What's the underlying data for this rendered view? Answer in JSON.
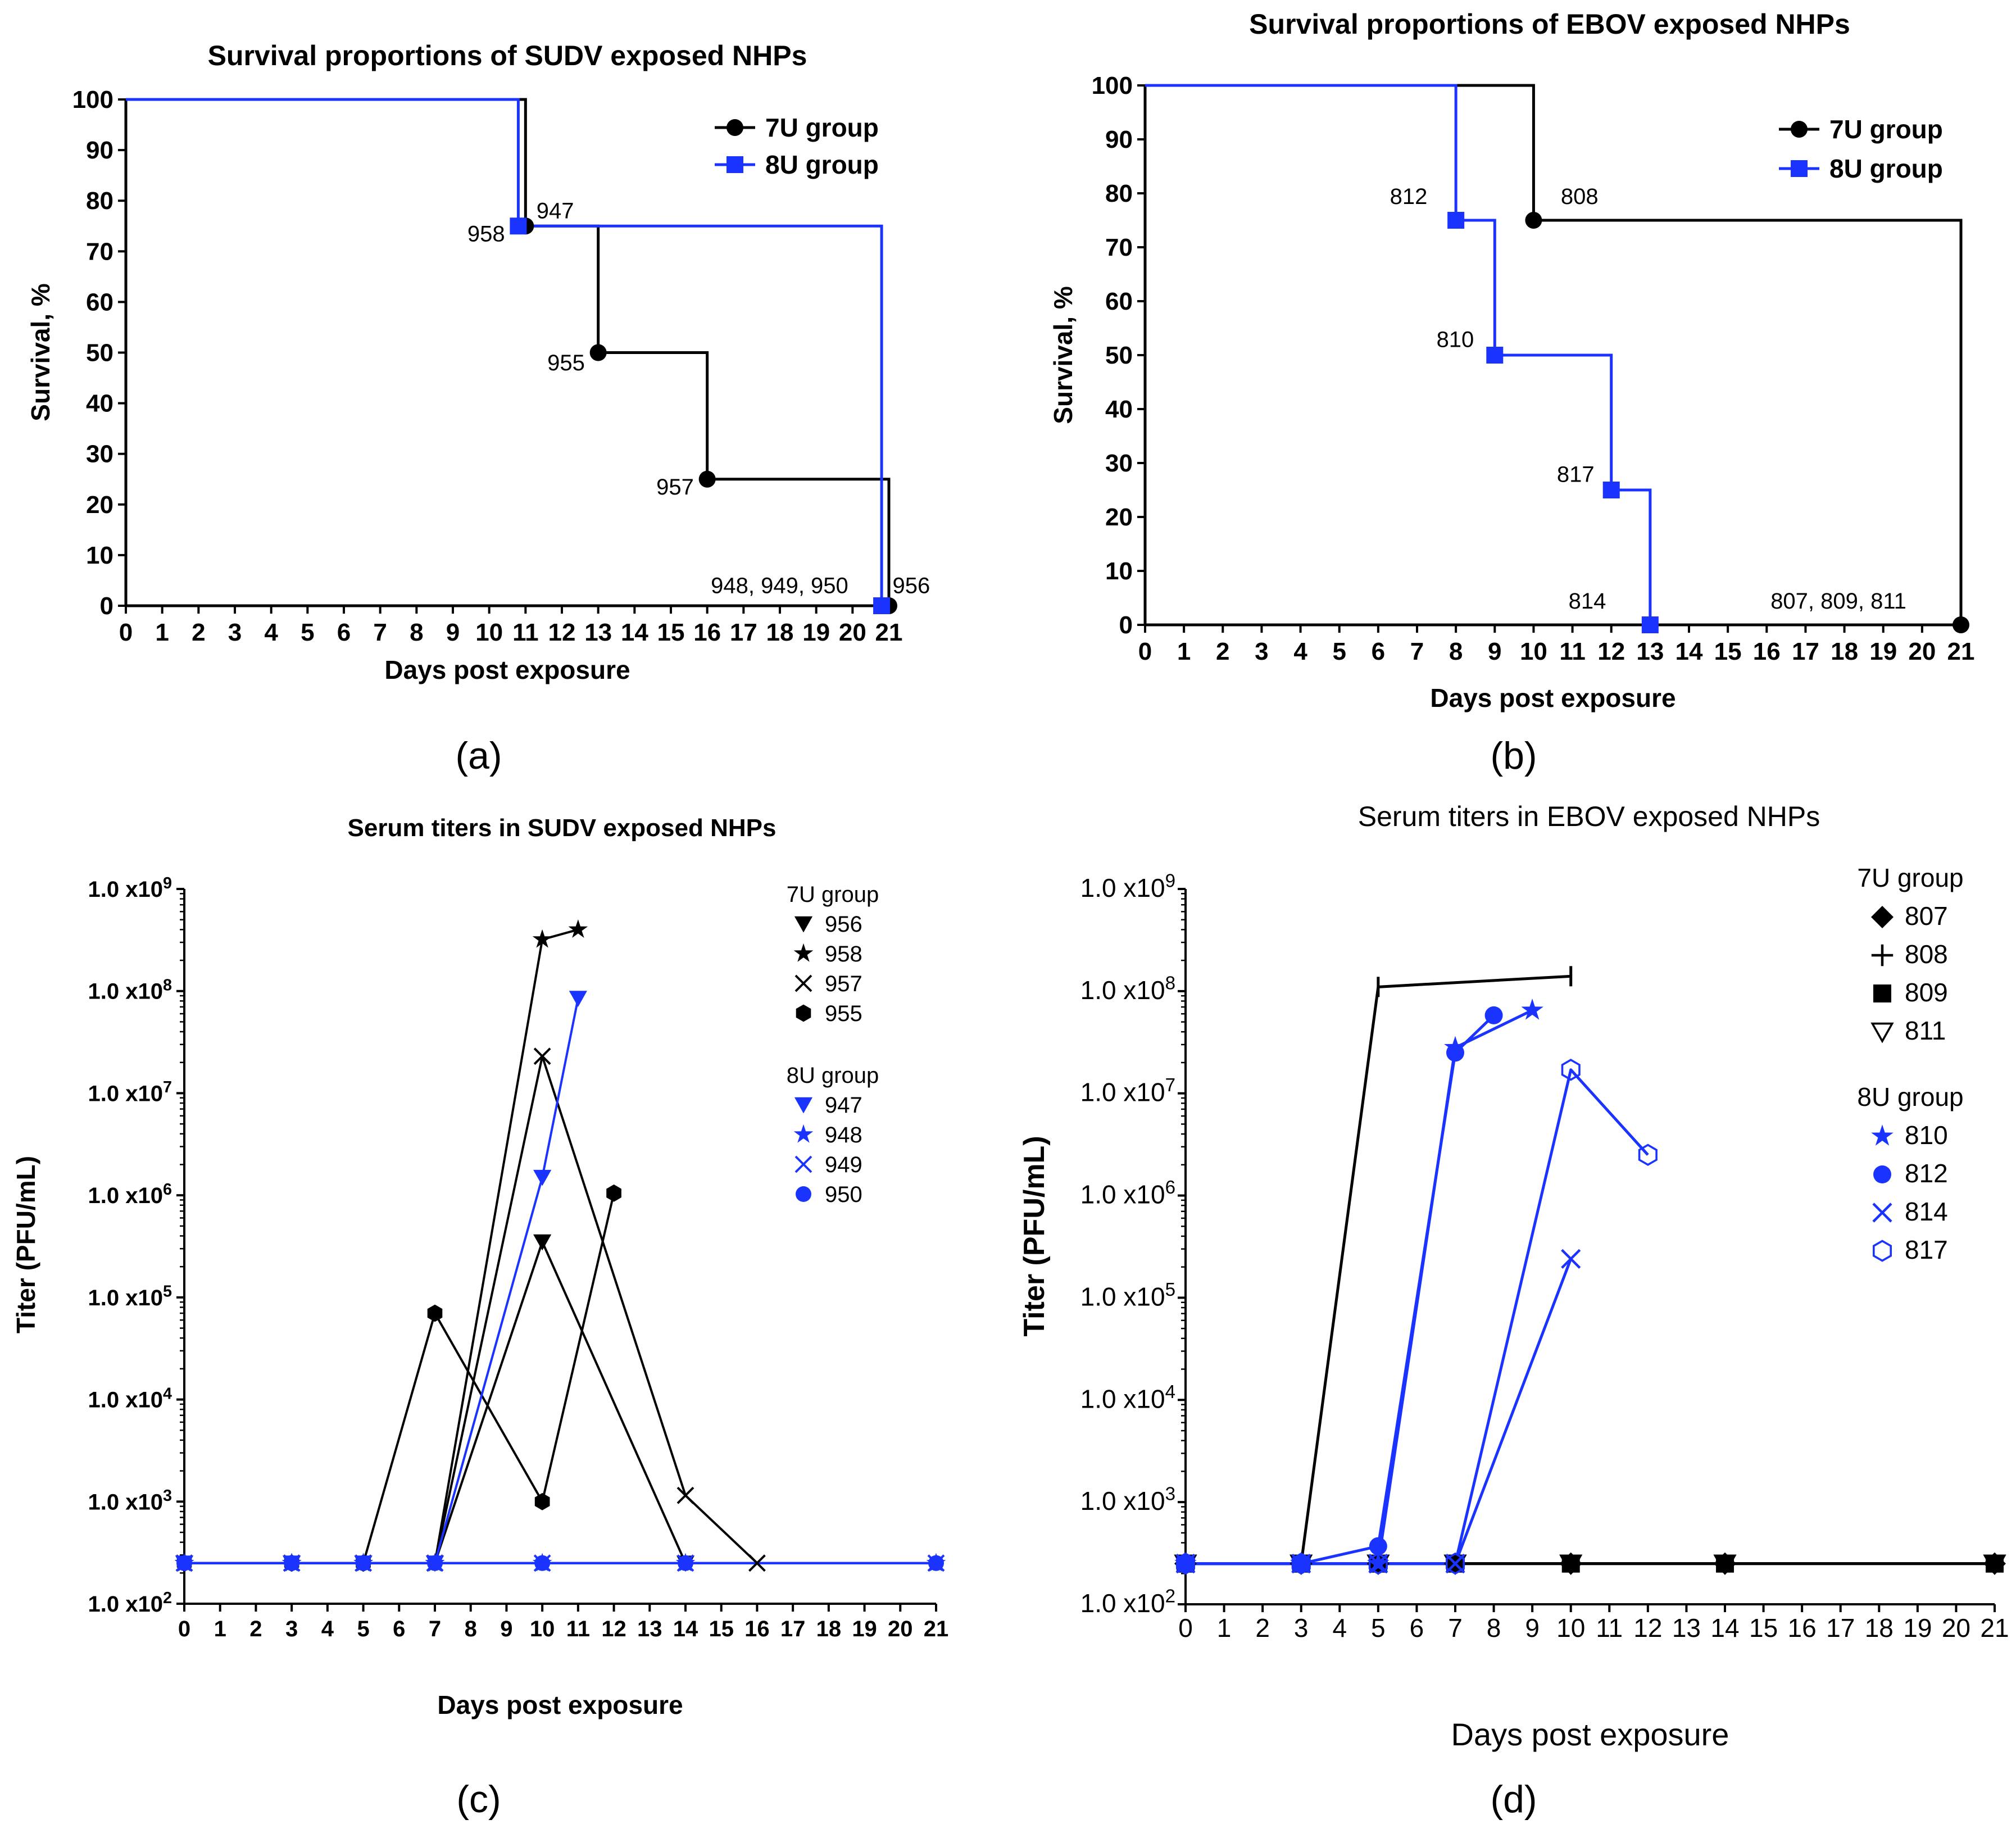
{
  "colors": {
    "group_7u": "#000000",
    "group_8u": "#1a33ff"
  },
  "panels": [
    {
      "id": "a",
      "caption": "(a)"
    },
    {
      "id": "b",
      "caption": "(b)"
    },
    {
      "id": "c",
      "caption": "(c)"
    },
    {
      "id": "d",
      "caption": "(d)"
    }
  ],
  "chart_data": [
    {
      "id": "a",
      "type": "line",
      "step": true,
      "title": "Survival proportions of SUDV exposed NHPs",
      "xlabel": "Days post exposure",
      "ylabel": "Survival, %",
      "xlim": [
        0,
        21
      ],
      "ylim": [
        0,
        100
      ],
      "xticks": [
        0,
        1,
        2,
        3,
        4,
        5,
        6,
        7,
        8,
        9,
        10,
        11,
        12,
        13,
        14,
        15,
        16,
        17,
        18,
        19,
        20,
        21
      ],
      "yticks": [
        0,
        10,
        20,
        30,
        40,
        50,
        60,
        70,
        80,
        90,
        100
      ],
      "legend_position": "top-right",
      "series": [
        {
          "name": "7U group",
          "color": "#000000",
          "marker": "circle",
          "x": [
            0,
            11,
            13,
            16,
            21
          ],
          "y": [
            100,
            75,
            50,
            25,
            0
          ]
        },
        {
          "name": "8U group",
          "color": "#1a33ff",
          "marker": "square",
          "x": [
            0,
            10.8,
            20.8
          ],
          "y": [
            100,
            75,
            0
          ]
        }
      ],
      "annotations": [
        {
          "text": "947",
          "x": 11.3,
          "y": 76.5
        },
        {
          "text": "958",
          "x": 9.4,
          "y": 72
        },
        {
          "text": "955",
          "x": 11.6,
          "y": 46.5
        },
        {
          "text": "957",
          "x": 14.6,
          "y": 22
        },
        {
          "text": "948, 949, 950",
          "x": 16.1,
          "y": 2.5
        },
        {
          "text": "956",
          "x": 21.1,
          "y": 2.5
        }
      ]
    },
    {
      "id": "b",
      "type": "line",
      "step": true,
      "title": "Survival proportions of EBOV exposed NHPs",
      "xlabel": "Days post exposure",
      "ylabel": "Survival, %",
      "xlim": [
        0,
        21
      ],
      "ylim": [
        0,
        100
      ],
      "xticks": [
        0,
        1,
        2,
        3,
        4,
        5,
        6,
        7,
        8,
        9,
        10,
        11,
        12,
        13,
        14,
        15,
        16,
        17,
        18,
        19,
        20,
        21
      ],
      "yticks": [
        0,
        10,
        20,
        30,
        40,
        50,
        60,
        70,
        80,
        90,
        100
      ],
      "legend_position": "top-right",
      "series": [
        {
          "name": "7U group",
          "color": "#000000",
          "marker": "circle",
          "x": [
            0,
            10,
            21
          ],
          "y": [
            100,
            75,
            0
          ]
        },
        {
          "name": "8U group",
          "color": "#1a33ff",
          "marker": "square",
          "x": [
            0,
            8,
            9,
            12,
            13
          ],
          "y": [
            100,
            75,
            50,
            25,
            0
          ]
        }
      ],
      "annotations": [
        {
          "text": "812",
          "x": 6.3,
          "y": 78
        },
        {
          "text": "808",
          "x": 10.7,
          "y": 78
        },
        {
          "text": "810",
          "x": 7.5,
          "y": 51.5
        },
        {
          "text": "817",
          "x": 10.6,
          "y": 26.5
        },
        {
          "text": "814",
          "x": 10.9,
          "y": 3
        },
        {
          "text": "807, 809, 811",
          "x": 16.1,
          "y": 3
        }
      ]
    },
    {
      "id": "c",
      "type": "line",
      "log_y": true,
      "title": "Serum titers in SUDV exposed NHPs",
      "xlabel": "Days post exposure",
      "ylabel": "Titer (PFU/mL)",
      "xlim": [
        0,
        21
      ],
      "ylim": [
        100,
        1000000000
      ],
      "xticks": [
        0,
        1,
        2,
        3,
        4,
        5,
        6,
        7,
        8,
        9,
        10,
        11,
        12,
        13,
        14,
        15,
        16,
        17,
        18,
        19,
        20,
        21
      ],
      "ytick_mantissa": "1.0 x10",
      "ytick_exponents": [
        "2",
        "3",
        "4",
        "5",
        "6",
        "7",
        "8",
        "9"
      ],
      "legend_position": "top-right",
      "legend_groups": [
        {
          "title": "7U group",
          "entries": [
            "956",
            "958",
            "957",
            "955"
          ]
        },
        {
          "title": "8U group",
          "entries": [
            "947",
            "948",
            "949",
            "950"
          ]
        }
      ],
      "series": [
        {
          "name": "956",
          "group": "7U group",
          "color": "#000000",
          "marker": "tri-down",
          "x": [
            0,
            3,
            5,
            7,
            10,
            14
          ],
          "y": [
            250,
            250,
            250,
            250,
            350000,
            250
          ]
        },
        {
          "name": "958",
          "group": "7U group",
          "color": "#000000",
          "marker": "star",
          "x": [
            0,
            3,
            5,
            7,
            10,
            11
          ],
          "y": [
            250,
            250,
            250,
            250,
            320000000,
            400000000
          ]
        },
        {
          "name": "957",
          "group": "7U group",
          "color": "#000000",
          "marker": "x",
          "x": [
            0,
            3,
            5,
            7,
            10,
            14,
            16
          ],
          "y": [
            250,
            250,
            250,
            250,
            23000000,
            1150,
            250
          ]
        },
        {
          "name": "955",
          "group": "7U group",
          "color": "#000000",
          "marker": "hexagon",
          "x": [
            0,
            3,
            5,
            7,
            10,
            12
          ],
          "y": [
            250,
            250,
            250,
            70000,
            1000,
            1050000
          ]
        },
        {
          "name": "947",
          "group": "8U group",
          "color": "#1a33ff",
          "marker": "tri-down",
          "x": [
            0,
            3,
            5,
            7,
            10,
            11
          ],
          "y": [
            250,
            250,
            250,
            250,
            1500000,
            85000000
          ]
        },
        {
          "name": "948",
          "group": "8U group",
          "color": "#1a33ff",
          "marker": "star",
          "x": [
            0,
            3,
            5,
            7,
            10,
            14,
            21
          ],
          "y": [
            250,
            250,
            250,
            250,
            250,
            250,
            250
          ]
        },
        {
          "name": "949",
          "group": "8U group",
          "color": "#1a33ff",
          "marker": "x",
          "x": [
            0,
            3,
            5,
            7,
            10,
            14,
            21
          ],
          "y": [
            250,
            250,
            250,
            250,
            250,
            250,
            250
          ]
        },
        {
          "name": "950",
          "group": "8U group",
          "color": "#1a33ff",
          "marker": "circle",
          "x": [
            0,
            3,
            5,
            7,
            10,
            14,
            21
          ],
          "y": [
            250,
            250,
            250,
            250,
            250,
            250,
            250
          ]
        }
      ]
    },
    {
      "id": "d",
      "type": "line",
      "log_y": true,
      "title": "Serum titers in EBOV exposed NHPs",
      "xlabel": "Days post exposure",
      "ylabel": "Titer (PFU/mL)",
      "xlim": [
        0,
        21
      ],
      "ylim": [
        100,
        1000000000
      ],
      "xticks": [
        0,
        1,
        2,
        3,
        4,
        5,
        6,
        7,
        8,
        9,
        10,
        11,
        12,
        13,
        14,
        15,
        16,
        17,
        18,
        19,
        20,
        21
      ],
      "ytick_mantissa": "1.0 x10",
      "ytick_exponents": [
        "2",
        "3",
        "4",
        "5",
        "6",
        "7",
        "8",
        "9"
      ],
      "legend_position": "top-right",
      "legend_groups": [
        {
          "title": "7U group",
          "entries": [
            "807",
            "808",
            "809",
            "811"
          ]
        },
        {
          "title": "8U group",
          "entries": [
            "810",
            "812",
            "814",
            "817"
          ]
        }
      ],
      "series": [
        {
          "name": "807",
          "group": "7U group",
          "color": "#000000",
          "marker": "diamond",
          "x": [
            0,
            3,
            5,
            7,
            10,
            14,
            21
          ],
          "y": [
            250,
            250,
            250,
            250,
            250,
            250,
            250
          ]
        },
        {
          "name": "808",
          "group": "7U group",
          "color": "#000000",
          "marker": "plus",
          "x": [
            0,
            3,
            5,
            10
          ],
          "y": [
            250,
            250,
            110000000,
            140000000
          ]
        },
        {
          "name": "809",
          "group": "7U group",
          "color": "#000000",
          "marker": "square",
          "x": [
            0,
            3,
            5,
            7,
            10,
            14,
            21
          ],
          "y": [
            250,
            250,
            250,
            250,
            250,
            250,
            250
          ]
        },
        {
          "name": "811",
          "group": "7U group",
          "color": "#000000",
          "marker": "tri-down-open",
          "x": [
            0,
            3,
            5,
            7,
            10,
            14,
            21
          ],
          "y": [
            250,
            250,
            250,
            250,
            250,
            250,
            250
          ]
        },
        {
          "name": "810",
          "group": "8U group",
          "color": "#1a33ff",
          "marker": "star",
          "x": [
            0,
            3,
            5,
            7,
            9
          ],
          "y": [
            250,
            250,
            250,
            28000000,
            65000000
          ]
        },
        {
          "name": "812",
          "group": "8U group",
          "color": "#1a33ff",
          "marker": "circle",
          "x": [
            0,
            3,
            5,
            7,
            8
          ],
          "y": [
            250,
            250,
            370,
            25000000,
            58000000
          ]
        },
        {
          "name": "814",
          "group": "8U group",
          "color": "#1a33ff",
          "marker": "x",
          "x": [
            0,
            3,
            5,
            7,
            10
          ],
          "y": [
            250,
            250,
            250,
            250,
            240000
          ]
        },
        {
          "name": "817",
          "group": "8U group",
          "color": "#1a33ff",
          "marker": "hexagon-open",
          "x": [
            0,
            3,
            5,
            7,
            10,
            12
          ],
          "y": [
            250,
            250,
            250,
            250,
            17000000,
            2500000
          ]
        }
      ]
    }
  ]
}
